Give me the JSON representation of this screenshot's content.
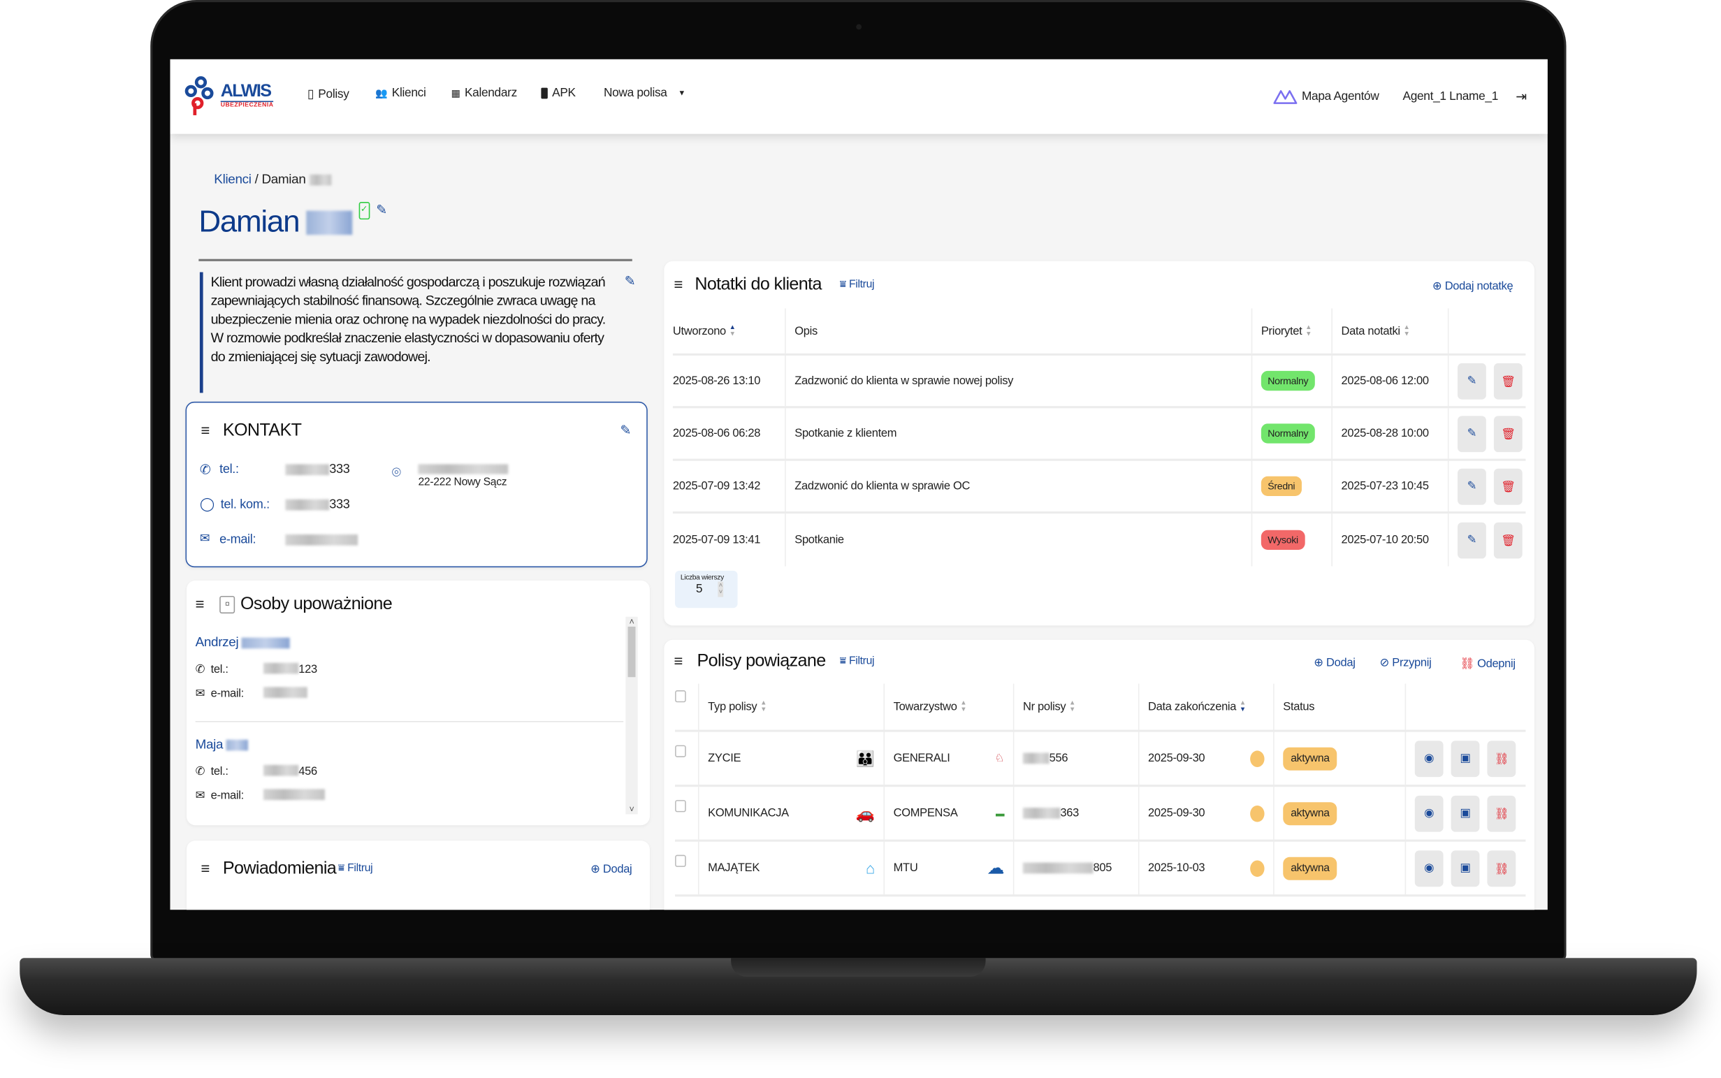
{
  "nav": {
    "logo_text": "ALWIS",
    "logo_sub": "UBEZPIECZENIA",
    "items": [
      {
        "label": "Polisy",
        "icon": "policy-icon"
      },
      {
        "label": "Klienci",
        "icon": "users-icon"
      },
      {
        "label": "Kalendarz",
        "icon": "calendar-icon"
      },
      {
        "label": "APK",
        "icon": "mobile-icon"
      }
    ],
    "new_policy": "Nowa polisa",
    "agents_map": "Mapa Agentów",
    "user": "Agent_1 Lname_1"
  },
  "breadcrumb": {
    "root": "Klienci",
    "separator": "/",
    "current": "Damian"
  },
  "client": {
    "first_name": "Damian",
    "description": "Klient prowadzi własną działalność gospodarczą i poszukuje rozwiązań zapewniających stabilność finansową. Szczególnie zwraca uwagę na ubezpieczenie mienia oraz ochronę na wypadek niezdolności do pracy. W rozmowie podkreślał znaczenie elastyczności w dopasowaniu oferty do zmieniającej się sytuacji zawodowej."
  },
  "contact": {
    "title": "KONTAKT",
    "phone_label": "tel.:",
    "phone_suffix": "333",
    "mobile_label": "tel. kom.:",
    "mobile_suffix": "333",
    "email_label": "e-mail:",
    "address_city": "22-222 Nowy Sącz"
  },
  "authorized": {
    "title": "Osoby upoważnione",
    "people": [
      {
        "first_name": "Andrzej",
        "tel_label": "tel.:",
        "tel_suffix": "123",
        "email_label": "e-mail:"
      },
      {
        "first_name": "Maja",
        "tel_label": "tel.:",
        "tel_suffix": "456",
        "email_label": "e-mail:"
      }
    ]
  },
  "notifications": {
    "title": "Powiadomienia",
    "filter": "Filtruj",
    "add": "Dodaj"
  },
  "notes": {
    "title": "Notatki do klienta",
    "filter": "Filtruj",
    "add": "Dodaj notatkę",
    "columns": {
      "created": "Utworzono",
      "desc": "Opis",
      "priority": "Priorytet",
      "date": "Data notatki"
    },
    "rows": [
      {
        "created": "2025-08-26 13:10",
        "desc": "Zadzwonić do klienta w sprawie nowej polisy",
        "priority": "Normalny",
        "priority_color": "#72e56c",
        "date": "2025-08-06 12:00"
      },
      {
        "created": "2025-08-06 06:28",
        "desc": "Spotkanie z klientem",
        "priority": "Normalny",
        "priority_color": "#72e56c",
        "date": "2025-08-28 10:00"
      },
      {
        "created": "2025-07-09 13:42",
        "desc": "Zadzwonić do klienta w sprawie OC",
        "priority": "Średni",
        "priority_color": "#f7c46c",
        "date": "2025-07-23 10:45"
      },
      {
        "created": "2025-07-09 13:41",
        "desc": "Spotkanie",
        "priority": "Wysoki",
        "priority_color": "#f26868",
        "date": "2025-07-10 20:50"
      }
    ],
    "rows_per_page_label": "Liczba wierszy",
    "rows_per_page": "5"
  },
  "policies": {
    "title": "Polisy powiązane",
    "filter": "Filtruj",
    "add": "Dodaj",
    "pin": "Przypnij",
    "unpin": "Odepnij",
    "columns": {
      "type": "Typ polisy",
      "company": "Towarzystwo",
      "number": "Nr polisy",
      "end_date": "Data zakończenia",
      "status": "Status"
    },
    "rows": [
      {
        "type": "ZYCIE",
        "type_icon": "family-icon",
        "company": "GENERALI",
        "company_logo": "generali-logo",
        "number_suffix": "556",
        "end_date": "2025-09-30",
        "status": "aktywna"
      },
      {
        "type": "KOMUNIKACJA",
        "type_icon": "car-icon",
        "company": "COMPENSA",
        "company_logo": "compensa-logo",
        "number_suffix": "363",
        "end_date": "2025-09-30",
        "status": "aktywna"
      },
      {
        "type": "MAJĄTEK",
        "type_icon": "house-icon",
        "company": "MTU",
        "company_logo": "mtu-logo",
        "number_suffix": "805",
        "end_date": "2025-10-03",
        "status": "aktywna"
      }
    ]
  },
  "colors": {
    "primary": "#1a4a9a",
    "title": "#0d3a8a",
    "status_active": "#f7c46c",
    "danger": "#e0202a",
    "success": "#2ecc40"
  }
}
